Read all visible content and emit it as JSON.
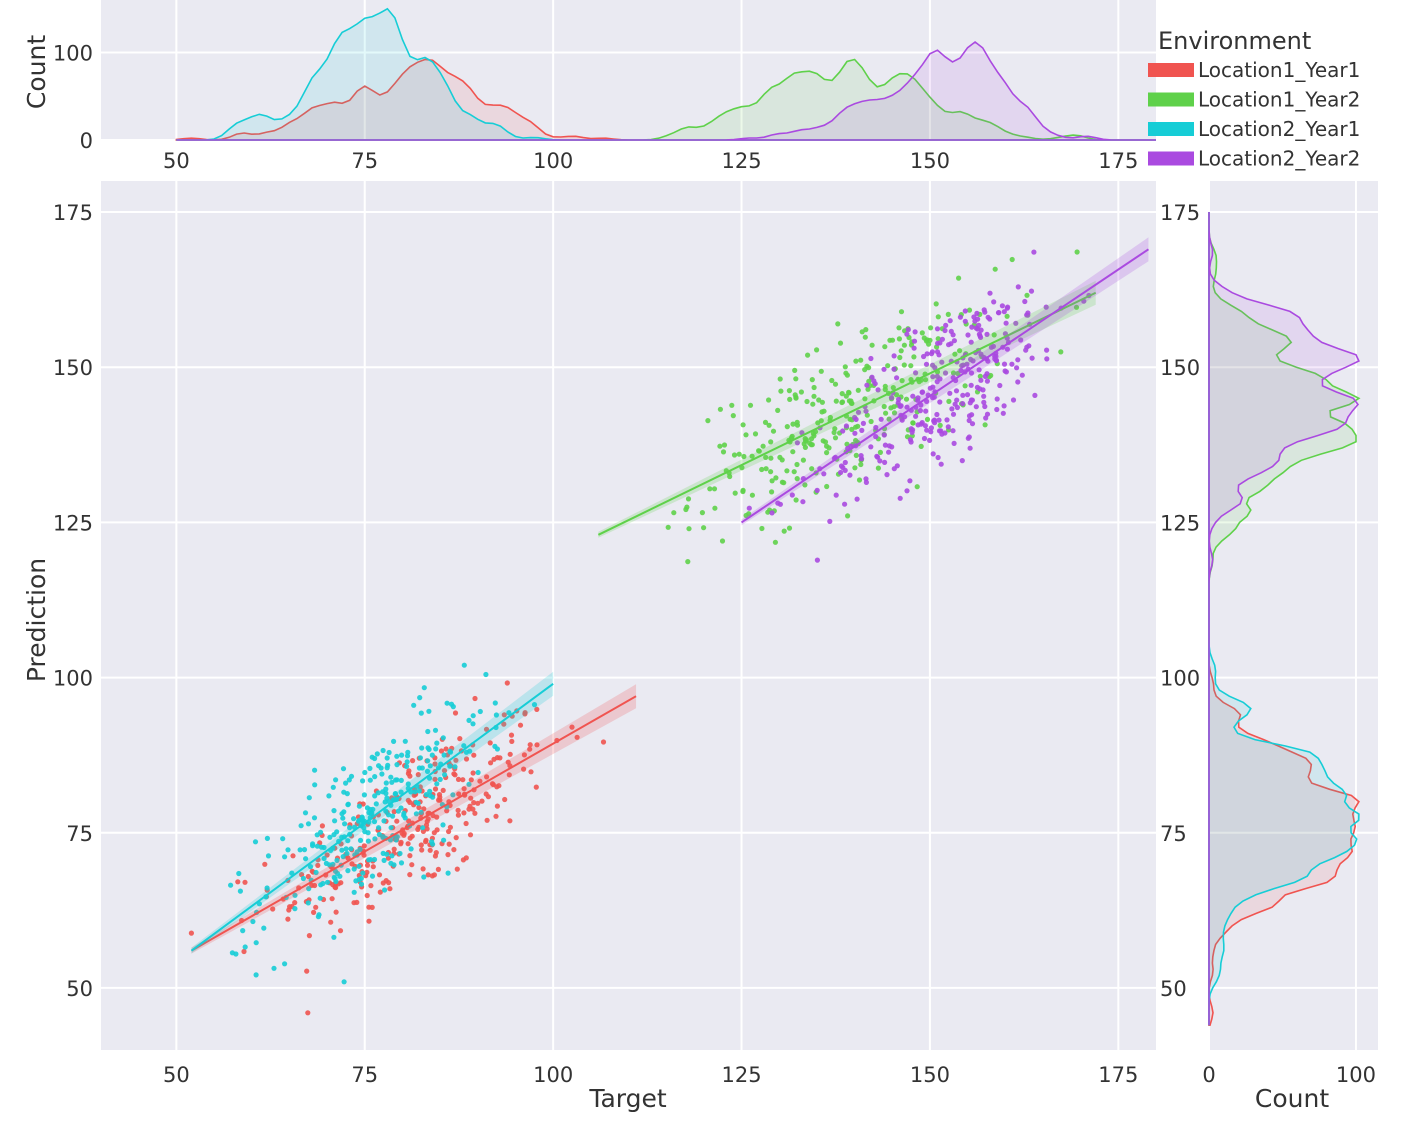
{
  "chart_data": {
    "type": "scatter",
    "subtype": "joint plot with marginal histograms and per-group regression lines",
    "xlabel": "Target",
    "ylabel": "Prediction",
    "xlim": [
      40,
      180
    ],
    "ylim": [
      40,
      180
    ],
    "x_ticks": [
      50,
      75,
      100,
      125,
      150,
      175
    ],
    "y_ticks": [
      50,
      75,
      100,
      125,
      150,
      175
    ],
    "grid": true,
    "legend": {
      "title": "Environment",
      "placement": "top-right"
    },
    "series": [
      {
        "name": "Location1_Year1",
        "color": "#f05450",
        "x_range": [
          52,
          111
        ],
        "y_range": [
          46,
          101
        ],
        "regression": {
          "x": [
            52,
            111
          ],
          "y": [
            56,
            97
          ]
        }
      },
      {
        "name": "Location1_Year2",
        "color": "#5fd14a",
        "x_range": [
          106,
          172
        ],
        "y_range": [
          115,
          171
        ],
        "regression": {
          "x": [
            106,
            172
          ],
          "y": [
            123,
            162
          ]
        }
      },
      {
        "name": "Location2_Year1",
        "color": "#16cdd6",
        "x_range": [
          52,
          100
        ],
        "y_range": [
          46,
          102
        ],
        "regression": {
          "x": [
            52,
            100
          ],
          "y": [
            56,
            99
          ]
        }
      },
      {
        "name": "Location2_Year2",
        "color": "#aa4ae0",
        "x_range": [
          125,
          179
        ],
        "y_range": [
          115,
          171
        ],
        "regression": {
          "x": [
            125,
            179
          ],
          "y": [
            125,
            169
          ]
        }
      }
    ],
    "top_marginal": {
      "ylabel": "Count",
      "y_ticks": [
        0,
        100
      ],
      "x_ticks": [
        50,
        75,
        100,
        125,
        150,
        175
      ],
      "ylim": [
        0,
        160
      ]
    },
    "right_marginal": {
      "xlabel": "Count",
      "x_ticks": [
        0,
        100
      ],
      "y_ticks": [
        50,
        75,
        100,
        125,
        150,
        175
      ],
      "xlim": [
        0,
        115
      ]
    }
  }
}
